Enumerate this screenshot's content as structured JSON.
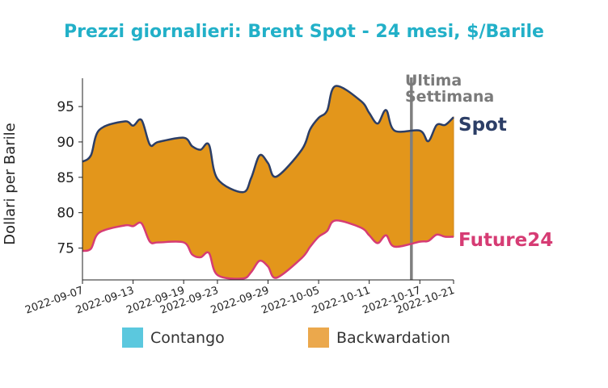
{
  "chart_data": {
    "type": "area",
    "title": "Prezzi giornalieri: Brent Spot - 24 mesi, $/Barile",
    "ylabel": "Dollari per Barile",
    "xlabel": "",
    "x": [
      "2022-09-07",
      "2022-09-08",
      "2022-09-09",
      "2022-09-12",
      "2022-09-13",
      "2022-09-14",
      "2022-09-15",
      "2022-09-16",
      "2022-09-19",
      "2022-09-20",
      "2022-09-21",
      "2022-09-22",
      "2022-09-23",
      "2022-09-26",
      "2022-09-27",
      "2022-09-28",
      "2022-09-29",
      "2022-09-30",
      "2022-10-03",
      "2022-10-04",
      "2022-10-05",
      "2022-10-06",
      "2022-10-07",
      "2022-10-10",
      "2022-10-11",
      "2022-10-12",
      "2022-10-13",
      "2022-10-14",
      "2022-10-17",
      "2022-10-18",
      "2022-10-19",
      "2022-10-20",
      "2022-10-21"
    ],
    "x_ticks": [
      "2022-09-07",
      "2022-09-13",
      "2022-09-19",
      "2022-09-23",
      "2022-09-29",
      "2022-10-05",
      "2022-10-11",
      "2022-10-17",
      "2022-10-21"
    ],
    "y_ticks": [
      75,
      80,
      85,
      90,
      95
    ],
    "ylim": [
      70.5,
      99
    ],
    "series": [
      {
        "name": "Spot",
        "color": "#2c3e66",
        "values": [
          87.2,
          88.1,
          91.7,
          92.9,
          92.3,
          93.1,
          89.6,
          90.0,
          90.6,
          89.4,
          88.9,
          89.6,
          84.8,
          82.9,
          84.9,
          88.1,
          87.0,
          85.1,
          88.9,
          91.8,
          93.4,
          94.4,
          97.9,
          95.8,
          94.1,
          92.6,
          94.5,
          91.6,
          91.6,
          90.1,
          92.4,
          92.4,
          93.5
        ]
      },
      {
        "name": "Future24",
        "color": "#d63c74",
        "values": [
          74.6,
          74.9,
          77.2,
          78.2,
          78.1,
          78.5,
          75.9,
          75.8,
          75.8,
          74.1,
          73.7,
          74.3,
          71.2,
          70.7,
          71.6,
          73.2,
          72.4,
          70.8,
          73.6,
          75.2,
          76.6,
          77.4,
          78.9,
          77.9,
          76.8,
          75.7,
          76.8,
          75.2,
          75.9,
          76.0,
          76.9,
          76.6,
          76.6
        ]
      }
    ],
    "annotation": {
      "text_line1": "Ultima",
      "text_line2": "Settimana",
      "x": "2022-10-16"
    },
    "legend": {
      "placement": "bottom",
      "items": [
        {
          "label": "Contango",
          "color": "#5bc8de"
        },
        {
          "label": "Backwardation",
          "color": "#eba84c"
        }
      ]
    },
    "fill_color": "#e3961b",
    "fill_edge_color": "#d0861a",
    "annotation_line_color": "#7f7f7f",
    "grid": false
  }
}
